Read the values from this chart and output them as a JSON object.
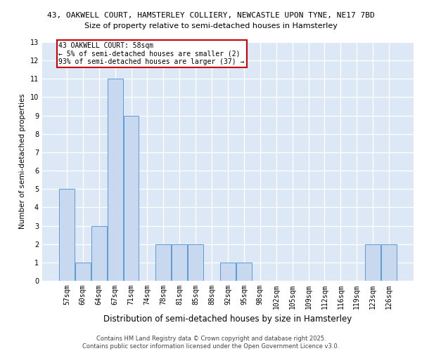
{
  "title_line1": "43, OAKWELL COURT, HAMSTERLEY COLLIERY, NEWCASTLE UPON TYNE, NE17 7BD",
  "title_line2": "Size of property relative to semi-detached houses in Hamsterley",
  "xlabel": "Distribution of semi-detached houses by size in Hamsterley",
  "ylabel": "Number of semi-detached properties",
  "categories": [
    "57sqm",
    "60sqm",
    "64sqm",
    "67sqm",
    "71sqm",
    "74sqm",
    "78sqm",
    "81sqm",
    "85sqm",
    "88sqm",
    "92sqm",
    "95sqm",
    "98sqm",
    "102sqm",
    "105sqm",
    "109sqm",
    "112sqm",
    "116sqm",
    "119sqm",
    "123sqm",
    "126sqm"
  ],
  "values": [
    5,
    1,
    3,
    11,
    9,
    0,
    2,
    2,
    2,
    0,
    1,
    1,
    0,
    0,
    0,
    0,
    0,
    0,
    0,
    2,
    2
  ],
  "bar_color": "#c8d8ee",
  "bar_edge_color": "#5b9bd5",
  "background_color": "#dce8f5",
  "grid_color": "#ffffff",
  "annotation_text": "43 OAKWELL COURT: 58sqm\n← 5% of semi-detached houses are smaller (2)\n93% of semi-detached houses are larger (37) →",
  "annotation_box_color": "#ffffff",
  "annotation_box_edge_color": "#cc0000",
  "footer_text": "Contains HM Land Registry data © Crown copyright and database right 2025.\nContains public sector information licensed under the Open Government Licence v3.0.",
  "ylim": [
    0,
    13
  ],
  "yticks": [
    0,
    1,
    2,
    3,
    4,
    5,
    6,
    7,
    8,
    9,
    10,
    11,
    12,
    13
  ],
  "title1_fontsize": 8.0,
  "title2_fontsize": 8.0,
  "ylabel_fontsize": 7.5,
  "xlabel_fontsize": 8.5,
  "tick_fontsize": 7.0,
  "annotation_fontsize": 7.0,
  "footer_fontsize": 6.0
}
